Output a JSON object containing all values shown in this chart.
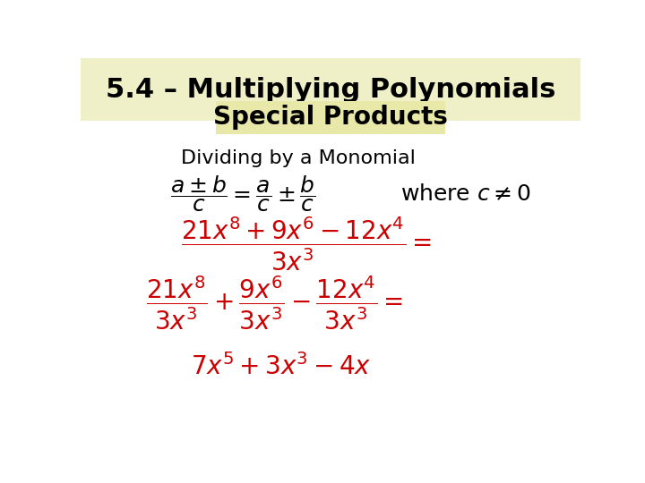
{
  "title": "5.4 – Multiplying Polynomials",
  "subtitle": "Special Products",
  "title_bg": "#f0f0c8",
  "subtitle_bg": "#e8e8a8",
  "background_color": "#ffffff",
  "text_color_black": "#000000",
  "text_color_red": "#cc0000",
  "dividing_label": "Dividing by a Monomial",
  "title_fontsize": 22,
  "subtitle_fontsize": 20,
  "label_fontsize": 16,
  "formula_fontsize": 18,
  "formula_large_fontsize": 20
}
